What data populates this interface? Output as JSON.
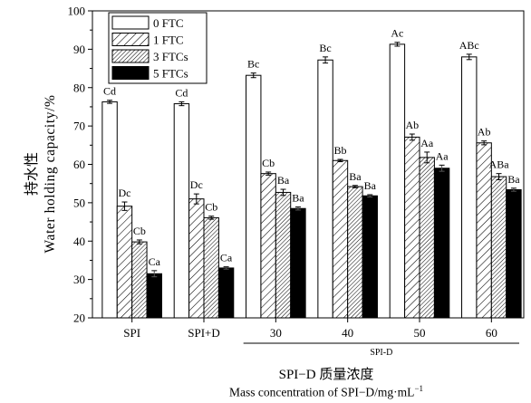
{
  "chart_data": {
    "type": "bar",
    "categories": [
      "SPI",
      "SPI+D",
      "30",
      "40",
      "50",
      "60"
    ],
    "group_label": "SPI-D",
    "series": [
      {
        "name": "0 FTC",
        "pattern": "white",
        "values": [
          76.3,
          75.8,
          83.2,
          87.2,
          91.3,
          88.0
        ],
        "errors": [
          0.4,
          0.5,
          0.6,
          0.8,
          0.5,
          0.7
        ],
        "labels": [
          "Cd",
          "Cd",
          "Bc",
          "Bc",
          "Ac",
          "ABc"
        ]
      },
      {
        "name": "1 FTC",
        "pattern": "hatch-wide",
        "values": [
          49.1,
          51.0,
          57.6,
          61.0,
          67.1,
          65.6
        ],
        "errors": [
          1.1,
          1.3,
          0.4,
          0.3,
          0.8,
          0.5
        ],
        "labels": [
          "Dc",
          "Dc",
          "Cb",
          "Bb",
          "Ab",
          "Ab"
        ]
      },
      {
        "name": "3 FTCs",
        "pattern": "hatch-dense",
        "values": [
          39.8,
          46.1,
          52.7,
          54.2,
          61.8,
          56.8
        ],
        "errors": [
          0.5,
          0.4,
          0.8,
          0.3,
          1.4,
          0.8
        ],
        "labels": [
          "Cb",
          "Cb",
          "Ba",
          "Ba",
          "Aa",
          "ABa"
        ]
      },
      {
        "name": "5 FTCs",
        "pattern": "black",
        "values": [
          31.5,
          33.0,
          48.5,
          51.8,
          59.0,
          53.4
        ],
        "errors": [
          0.8,
          0.3,
          0.4,
          0.3,
          0.8,
          0.4
        ],
        "labels": [
          "Ca",
          "Ca",
          "Ba",
          "Ba",
          "Aa",
          "Ba"
        ]
      }
    ],
    "ylabel_zh": "持水性",
    "ylabel_en": "Water holding capacity/%",
    "xlabel_zh": "SPI−D 质量浓度",
    "xlabel_en": "Mass concentration of SPI−D/mg·mL",
    "xlabel_en_sup": "−1",
    "ylim": [
      20,
      100
    ],
    "yticks": [
      20,
      30,
      40,
      50,
      60,
      70,
      80,
      90,
      100
    ],
    "legend_position": "top-left",
    "grid": false
  }
}
